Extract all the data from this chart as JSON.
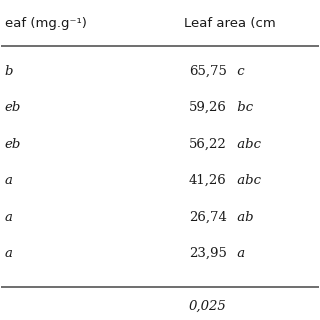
{
  "col1_header": "eaf (mg.g⁻¹)",
  "col2_header": "Leaf area (cm",
  "rows": [
    {
      "col1": "b",
      "col2_num": "65,75",
      "col2_letter": " c"
    },
    {
      "col1": "eb",
      "col2_num": "59,26",
      "col2_letter": " bc"
    },
    {
      "col1": "eb",
      "col2_num": "56,22",
      "col2_letter": " abc"
    },
    {
      "col1": "a",
      "col2_num": "41,26",
      "col2_letter": " abc"
    },
    {
      "col1": "a",
      "col2_num": "26,74",
      "col2_letter": " ab"
    },
    {
      "col1": "a",
      "col2_num": "23,95",
      "col2_letter": " a"
    }
  ],
  "footer_col2": "0,025",
  "bg_color": "#f5f5f5",
  "text_color": "#1a1a1a",
  "header_line_color": "#555555",
  "footer_line_color": "#555555",
  "font_size": 9.5,
  "header_font_size": 9.5
}
